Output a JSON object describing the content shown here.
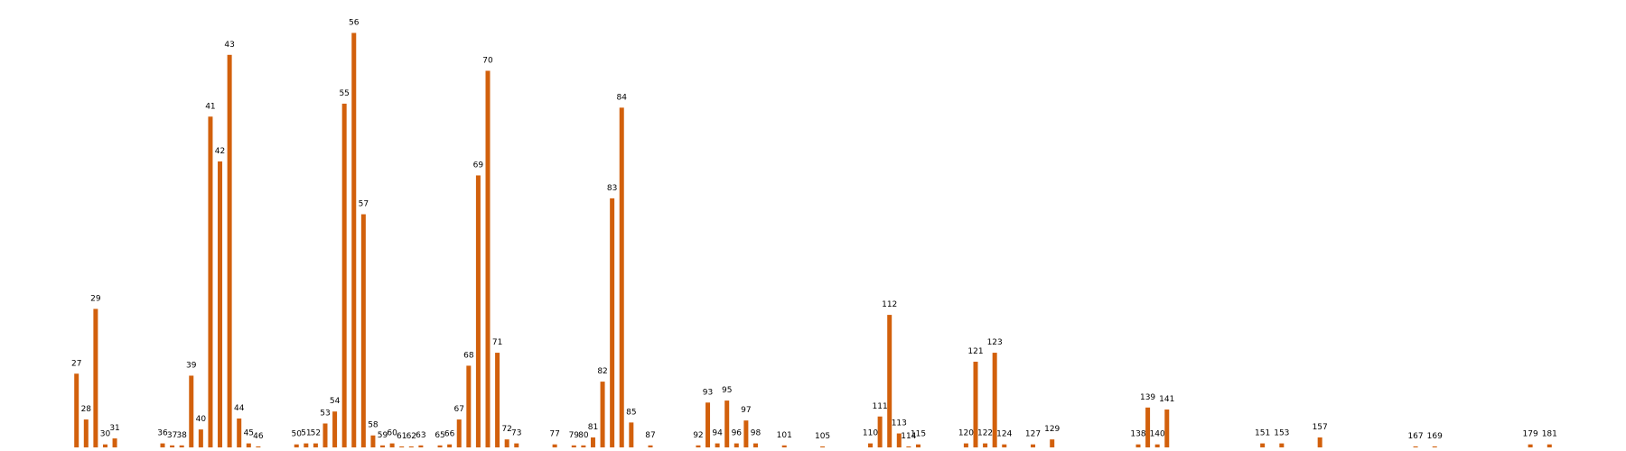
{
  "chart_data": {
    "type": "bar",
    "color": "#d2600c",
    "x": [
      27,
      28,
      29,
      30,
      31,
      36,
      37,
      38,
      39,
      40,
      41,
      42,
      43,
      44,
      45,
      46,
      50,
      51,
      52,
      53,
      54,
      55,
      56,
      57,
      58,
      59,
      60,
      61,
      62,
      63,
      65,
      66,
      67,
      68,
      69,
      70,
      71,
      72,
      73,
      77,
      79,
      80,
      81,
      82,
      83,
      84,
      85,
      87,
      92,
      93,
      94,
      95,
      96,
      97,
      98,
      101,
      105,
      110,
      111,
      112,
      113,
      114,
      115,
      120,
      121,
      122,
      123,
      124,
      127,
      129,
      138,
      139,
      140,
      141,
      151,
      153,
      157,
      167,
      169,
      179,
      181
    ],
    "values": [
      74,
      28,
      139,
      3,
      9,
      4,
      2,
      2,
      72,
      18,
      332,
      287,
      394,
      29,
      4,
      1,
      3,
      4,
      4,
      24,
      36,
      345,
      416,
      234,
      12,
      2,
      4,
      1,
      1,
      2,
      2,
      3,
      28,
      82,
      273,
      378,
      95,
      8,
      4,
      3,
      2,
      2,
      10,
      66,
      250,
      341,
      25,
      2,
      2,
      45,
      4,
      47,
      4,
      27,
      4,
      2,
      1,
      4,
      31,
      133,
      14,
      1,
      3,
      4,
      86,
      4,
      95,
      3,
      3,
      8,
      3,
      40,
      3,
      38,
      4,
      4,
      10,
      1,
      1,
      3,
      3
    ],
    "xlim": [
      19,
      189
    ],
    "ylim": [
      0,
      440
    ]
  }
}
